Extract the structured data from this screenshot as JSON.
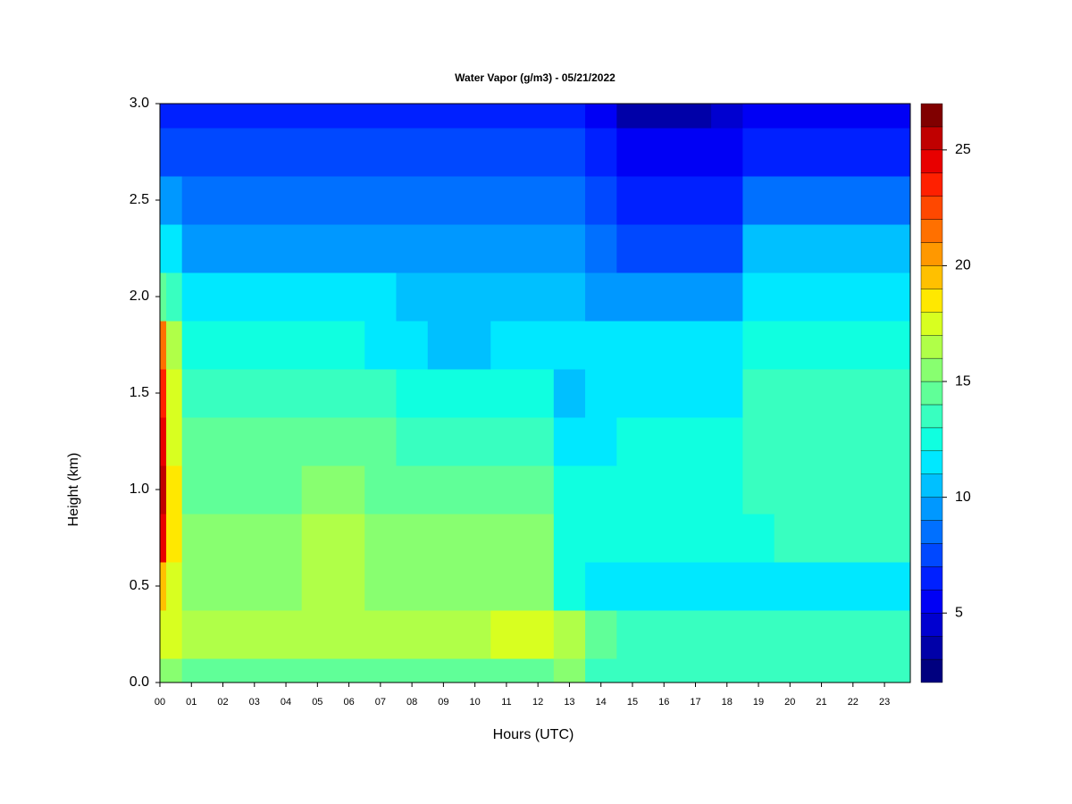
{
  "chart_data": {
    "type": "heatmap",
    "title": "Water Vapor (g/m3) - 05/21/2022",
    "xlabel": "Hours (UTC)",
    "ylabel": "Height (km)",
    "x": [
      0,
      0.4,
      1,
      2,
      3,
      4,
      5,
      6,
      7,
      8,
      9,
      10,
      11,
      12,
      13,
      14,
      15,
      16,
      17,
      18,
      19,
      20,
      21,
      22,
      23
    ],
    "y": [
      0,
      0.25,
      0.5,
      0.75,
      1.0,
      1.25,
      1.5,
      1.75,
      2.0,
      2.25,
      2.5,
      2.75,
      3.0
    ],
    "z": [
      [
        15,
        15,
        14,
        14,
        14,
        14,
        14,
        14,
        14,
        14,
        14,
        14,
        14,
        14,
        15,
        13,
        13,
        13,
        13,
        13,
        13,
        13,
        13,
        13,
        13
      ],
      [
        17,
        17,
        16,
        16,
        16,
        16,
        16,
        16,
        16,
        16,
        16,
        16,
        17,
        17,
        16,
        14,
        13,
        13,
        13,
        13,
        13,
        13,
        13,
        13,
        13
      ],
      [
        19,
        17,
        15,
        15,
        15,
        15,
        16,
        16,
        15,
        15,
        15,
        15,
        15,
        15,
        12,
        11,
        11,
        11,
        11,
        11,
        11,
        11,
        11,
        11,
        11
      ],
      [
        24,
        18,
        15,
        15,
        15,
        15,
        16,
        16,
        15,
        15,
        15,
        15,
        15,
        15,
        12,
        12,
        12,
        12,
        12,
        12,
        12,
        13,
        13,
        13,
        13
      ],
      [
        25,
        18,
        14,
        14,
        14,
        14,
        15,
        15,
        14,
        14,
        14,
        14,
        14,
        14,
        12,
        12,
        12,
        12,
        12,
        12,
        13,
        13,
        13,
        13,
        13
      ],
      [
        24,
        17,
        14,
        14,
        14,
        14,
        14,
        14,
        14,
        13,
        13,
        13,
        13,
        13,
        11,
        11,
        12,
        12,
        12,
        12,
        13,
        13,
        13,
        13,
        13
      ],
      [
        23,
        17,
        13,
        13,
        13,
        13,
        13,
        13,
        13,
        12,
        12,
        12,
        12,
        12,
        10,
        11,
        11,
        11,
        11,
        11,
        13,
        13,
        13,
        13,
        13
      ],
      [
        21,
        16,
        12,
        12,
        12,
        12,
        12,
        12,
        11,
        11,
        10,
        10,
        11,
        11,
        11,
        11,
        11,
        11,
        11,
        11,
        12,
        12,
        12,
        12,
        12
      ],
      [
        14,
        13,
        11,
        11,
        11,
        11,
        11,
        11,
        11,
        10,
        10,
        10,
        10,
        10,
        10,
        9,
        9,
        9,
        9,
        9,
        11,
        11,
        11,
        11,
        11
      ],
      [
        11,
        11,
        9,
        9,
        9,
        9,
        9,
        9,
        9,
        9,
        9,
        9,
        9,
        9,
        9,
        8,
        7,
        7,
        7,
        7,
        10,
        10,
        10,
        10,
        10
      ],
      [
        9,
        9,
        8,
        8,
        8,
        8,
        8,
        8,
        8,
        8,
        8,
        8,
        8,
        8,
        8,
        7,
        6,
        6,
        6,
        6,
        8,
        8,
        8,
        8,
        8
      ],
      [
        7,
        7,
        7,
        7,
        7,
        7,
        7,
        7,
        7,
        7,
        7,
        7,
        7,
        7,
        7,
        6,
        5,
        5,
        5,
        5,
        6,
        6,
        6,
        6,
        6
      ],
      [
        6,
        6,
        6,
        6,
        6,
        6,
        6,
        6,
        6,
        6,
        6,
        6,
        6,
        6,
        6,
        5,
        3,
        3,
        3,
        4,
        5,
        5,
        5,
        5,
        5
      ]
    ],
    "xlim": [
      0,
      23.82
    ],
    "ylim": [
      0,
      3.0
    ],
    "xticks": [
      {
        "value": 0,
        "label": "00"
      },
      {
        "value": 1,
        "label": "01"
      },
      {
        "value": 2,
        "label": "02"
      },
      {
        "value": 3,
        "label": "03"
      },
      {
        "value": 4,
        "label": "04"
      },
      {
        "value": 5,
        "label": "05"
      },
      {
        "value": 6,
        "label": "06"
      },
      {
        "value": 7,
        "label": "07"
      },
      {
        "value": 8,
        "label": "08"
      },
      {
        "value": 9,
        "label": "09"
      },
      {
        "value": 10,
        "label": "10"
      },
      {
        "value": 11,
        "label": "11"
      },
      {
        "value": 12,
        "label": "12"
      },
      {
        "value": 13,
        "label": "13"
      },
      {
        "value": 14,
        "label": "14"
      },
      {
        "value": 15,
        "label": "15"
      },
      {
        "value": 16,
        "label": "16"
      },
      {
        "value": 17,
        "label": "17"
      },
      {
        "value": 18,
        "label": "18"
      },
      {
        "value": 19,
        "label": "19"
      },
      {
        "value": 20,
        "label": "20"
      },
      {
        "value": 21,
        "label": "21"
      },
      {
        "value": 22,
        "label": "22"
      },
      {
        "value": 23,
        "label": "23"
      }
    ],
    "yticks": [
      {
        "value": 0,
        "label": "0.0"
      },
      {
        "value": 0.5,
        "label": "0.5"
      },
      {
        "value": 1.0,
        "label": "1.0"
      },
      {
        "value": 1.5,
        "label": "1.5"
      },
      {
        "value": 2.0,
        "label": "2.0"
      },
      {
        "value": 2.5,
        "label": "2.5"
      },
      {
        "value": 3.0,
        "label": "3.0"
      }
    ],
    "levels": [
      2,
      3,
      4,
      5,
      6,
      7,
      8,
      9,
      10,
      11,
      12,
      13,
      14,
      15,
      16,
      17,
      18,
      19,
      20,
      21,
      22,
      23,
      24,
      25,
      26,
      27
    ],
    "colors": [
      "#00007f",
      "#0000a8",
      "#0000d0",
      "#0000f5",
      "#0020ff",
      "#0048ff",
      "#0070ff",
      "#0098ff",
      "#00c0ff",
      "#00e8ff",
      "#10ffe0",
      "#38ffc0",
      "#60ff98",
      "#88ff70",
      "#b0ff48",
      "#d8ff20",
      "#ffe800",
      "#ffc000",
      "#ff9800",
      "#ff7000",
      "#ff4800",
      "#ff2000",
      "#e80000",
      "#c00000",
      "#800000"
    ],
    "colorbar_ticks": [
      5,
      10,
      15,
      20,
      25
    ]
  }
}
